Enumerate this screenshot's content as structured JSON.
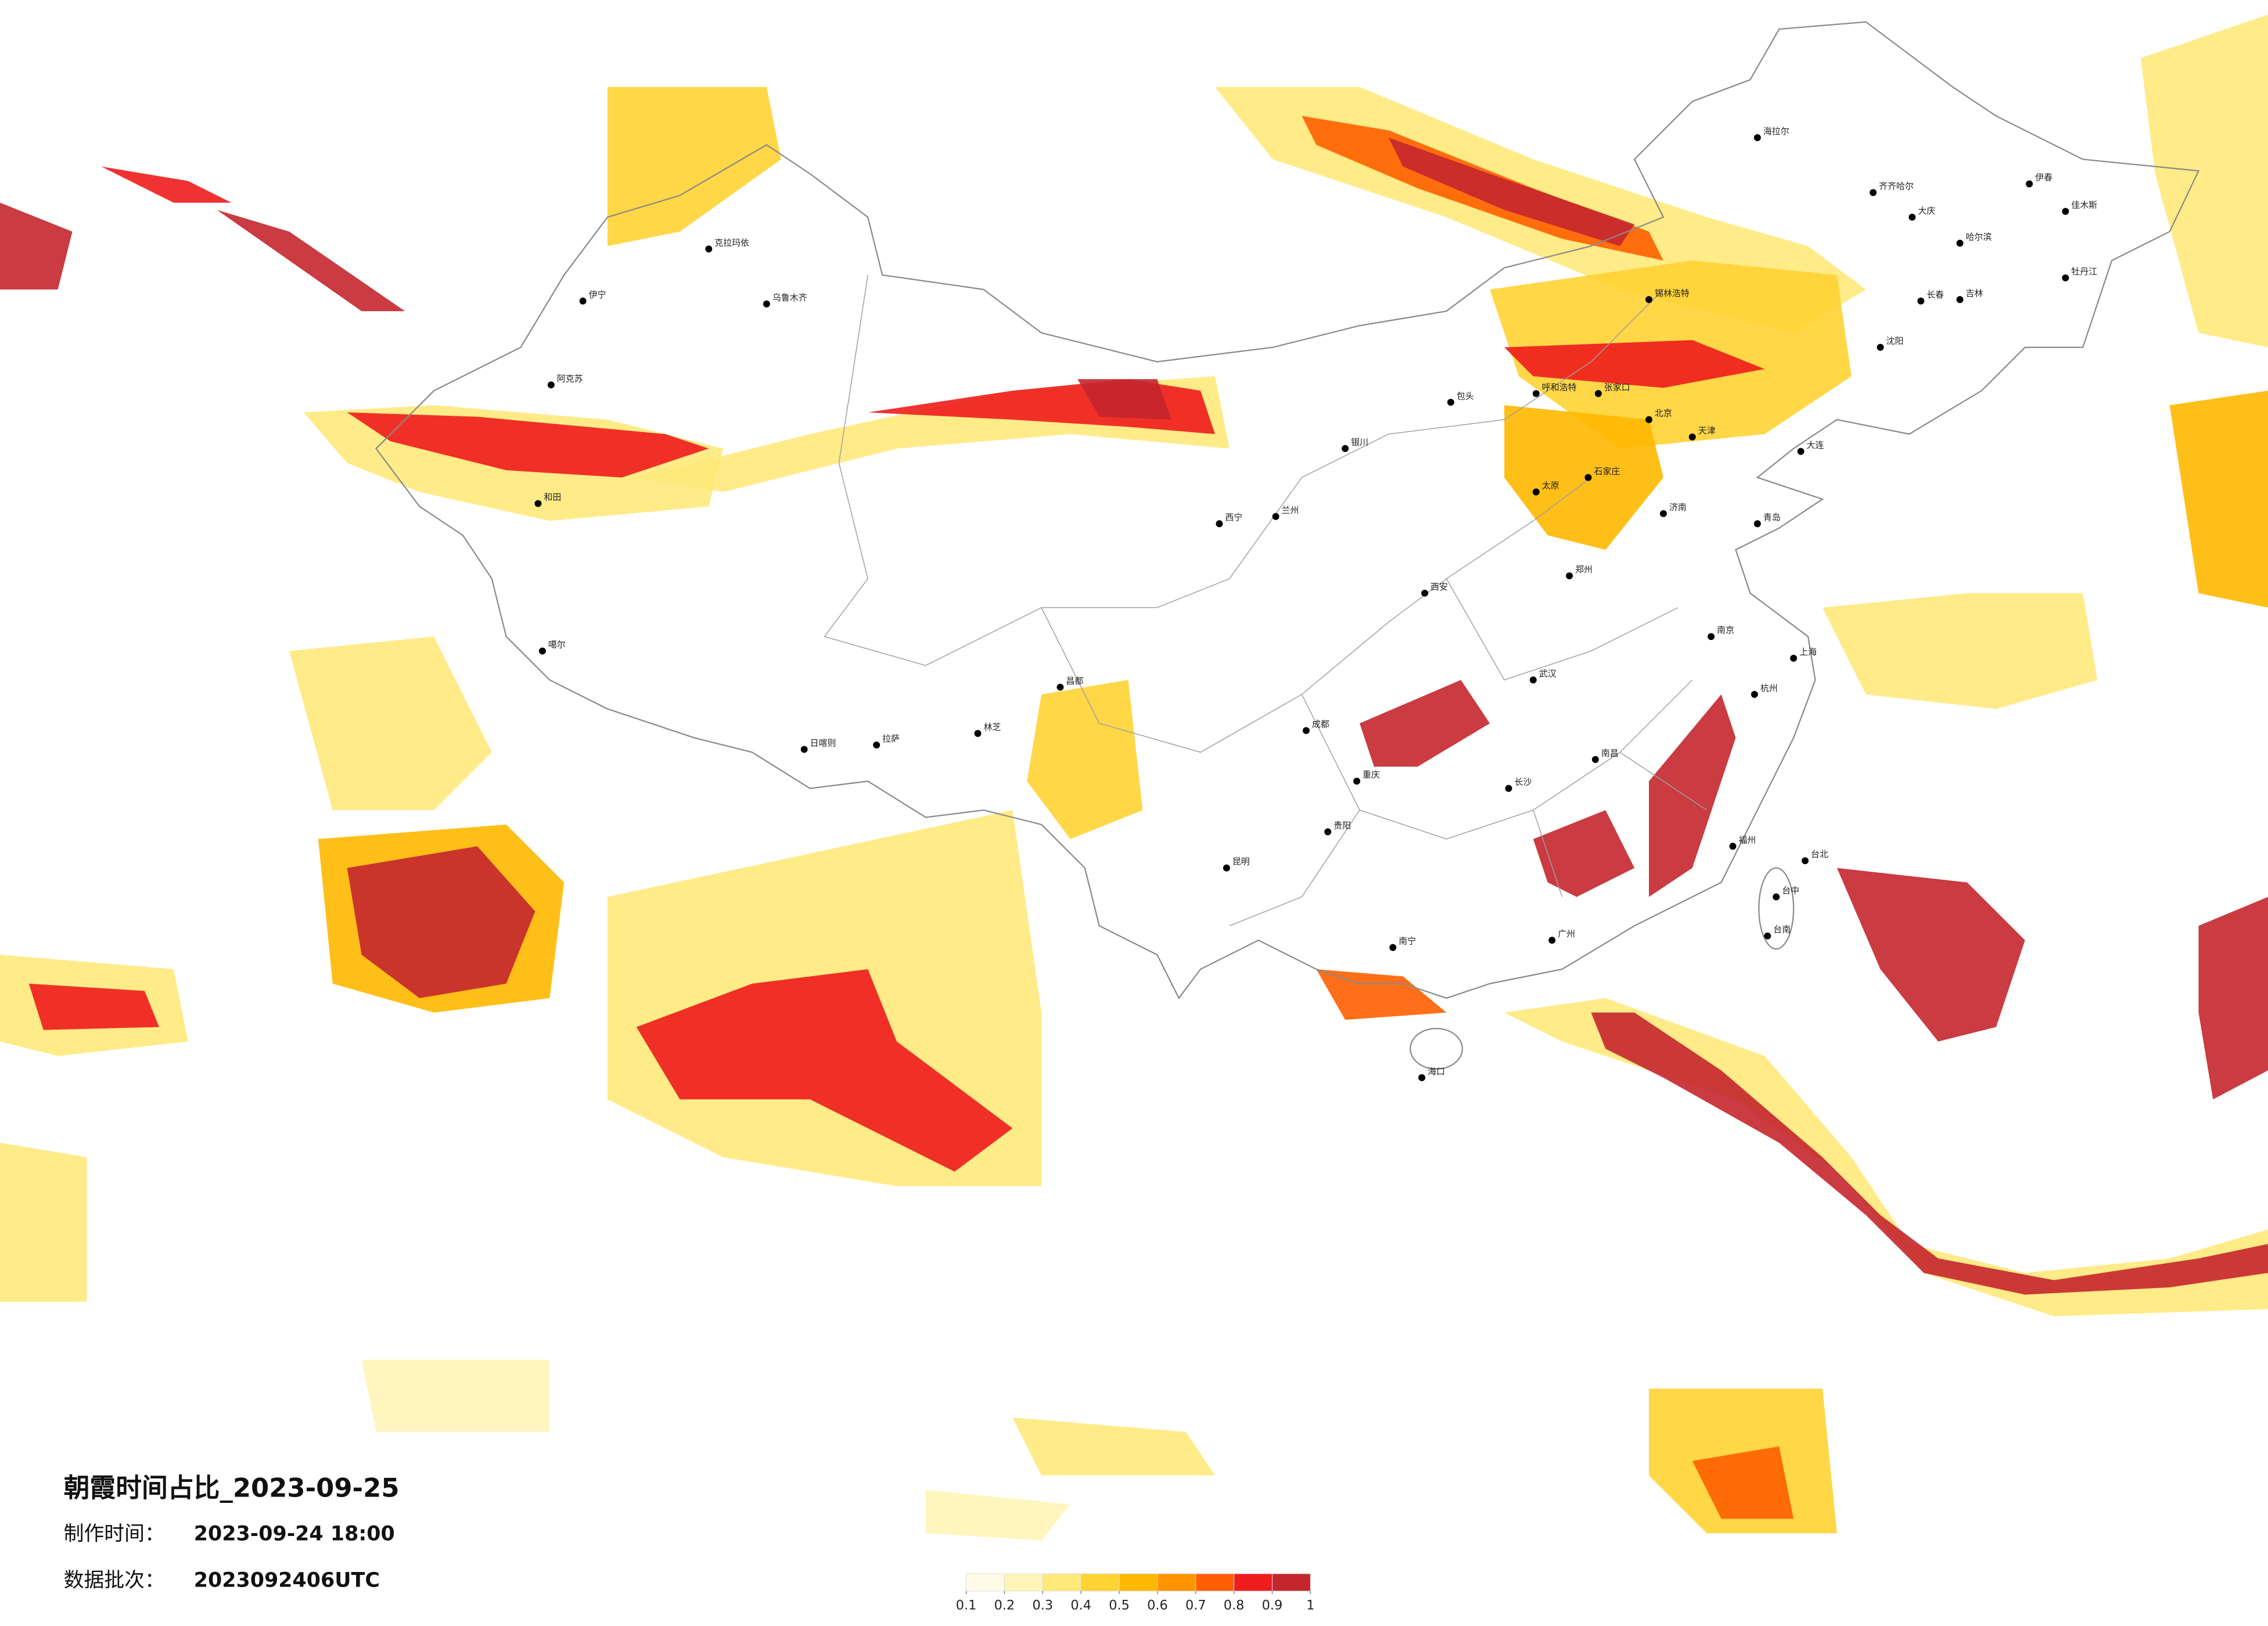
{
  "title": "朝霞时间占比_2023-09-25",
  "made_label": "制作时间：",
  "made_time": "2023-09-24 18:00",
  "batch_label": "数据批次：",
  "batch": "2023092406UTC",
  "colorbar": {
    "colors": [
      "#fffbe6",
      "#fff5b8",
      "#ffe97a",
      "#ffd333",
      "#ffb800",
      "#ff9400",
      "#ff5f00",
      "#ee1c1c",
      "#c4262e"
    ],
    "ticks": [
      0.1,
      0.2,
      0.3,
      0.4,
      0.5,
      0.6,
      0.7,
      0.8,
      0.9,
      1
    ]
  },
  "cities": [
    "海拉尔",
    "齐齐哈尔",
    "大庆",
    "哈尔滨",
    "伊春",
    "佳木斯",
    "牡丹江",
    "长春",
    "吉林",
    "沈阳",
    "大连",
    "锡林浩特",
    "呼和浩特",
    "包头",
    "张家口",
    "北京",
    "天津",
    "石家庄",
    "太原",
    "济南",
    "青岛",
    "郑州",
    "西安",
    "兰州",
    "西宁",
    "银川",
    "乌鲁木齐",
    "克拉玛依",
    "伊宁",
    "阿克苏",
    "和田",
    "噶尔",
    "日喀则",
    "拉萨",
    "林芝",
    "昌都",
    "成都",
    "重庆",
    "武汉",
    "南京",
    "上海",
    "杭州",
    "长沙",
    "南昌",
    "福州",
    "贵阳",
    "昆明",
    "南宁",
    "广州",
    "海口",
    "台北",
    "台中",
    "台南"
  ]
}
